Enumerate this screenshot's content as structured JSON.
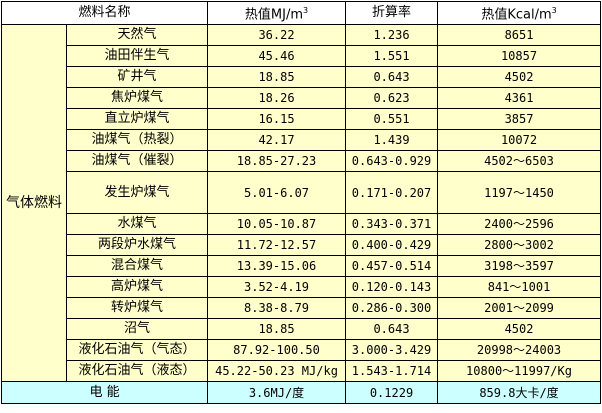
{
  "header": {
    "name": "燃料名称",
    "mj": "热值MJ/m",
    "mj_sup": "3",
    "rate": "折算率",
    "kcal": "热值Kcal/m",
    "kcal_sup": "3"
  },
  "group_label": "气体燃料",
  "rows": [
    {
      "name": "天然气",
      "mj": "36.22",
      "rate": "1.236",
      "kcal": "8651"
    },
    {
      "name": "油田伴生气",
      "mj": "45.46",
      "rate": "1.551",
      "kcal": "10857"
    },
    {
      "name": "矿井气",
      "mj": "18.85",
      "rate": "0.643",
      "kcal": "4502"
    },
    {
      "name": "焦炉煤气",
      "mj": "18.26",
      "rate": "0.623",
      "kcal": "4361"
    },
    {
      "name": "直立炉煤气",
      "mj": "16.15",
      "rate": "0.551",
      "kcal": "3857"
    },
    {
      "name": "油煤气（热裂）",
      "mj": "42.17",
      "rate": "1.439",
      "kcal": "10072"
    },
    {
      "name": "油煤气（催裂）",
      "mj": "18.85-27.23",
      "rate": "0.643-0.929",
      "kcal": "4502～6503"
    },
    {
      "name": "发生炉煤气",
      "mj": "5.01-6.07",
      "rate": "0.171-0.207",
      "kcal": "1197～1450"
    },
    {
      "name": "水煤气",
      "mj": "10.05-10.87",
      "rate": "0.343-0.371",
      "kcal": "2400～2596"
    },
    {
      "name": "两段炉水煤气",
      "mj": "11.72-12.57",
      "rate": "0.400-0.429",
      "kcal": "2800～3002"
    },
    {
      "name": "混合煤气",
      "mj": "13.39-15.06",
      "rate": "0.457-0.514",
      "kcal": "3198～3597"
    },
    {
      "name": "高炉煤气",
      "mj": "3.52-4.19",
      "rate": "0.120-0.143",
      "kcal": "841～1001"
    },
    {
      "name": "转炉煤气",
      "mj": "8.38-8.79",
      "rate": "0.286-0.300",
      "kcal": "2001～2099"
    },
    {
      "name": "沼气",
      "mj": "18.85",
      "rate": "0.643",
      "kcal": "4502"
    },
    {
      "name": "液化石油气（气态）",
      "mj": "87.92-100.50",
      "rate": "3.000-3.429",
      "kcal": "20998～24003"
    },
    {
      "name": "液化石油气（液态）",
      "mj": "45.22-50.23 MJ/kg",
      "rate": "1.543-1.714",
      "kcal": "10800～11997/Kg"
    }
  ],
  "electric": {
    "name": "电 能",
    "mj": "3.6MJ/度",
    "rate": "0.1229",
    "kcal": "859.8大卡/度"
  },
  "colors": {
    "data_bg": "#ffffcc",
    "electric_bg": "#ccffff",
    "header_bg": "#ffffff"
  }
}
